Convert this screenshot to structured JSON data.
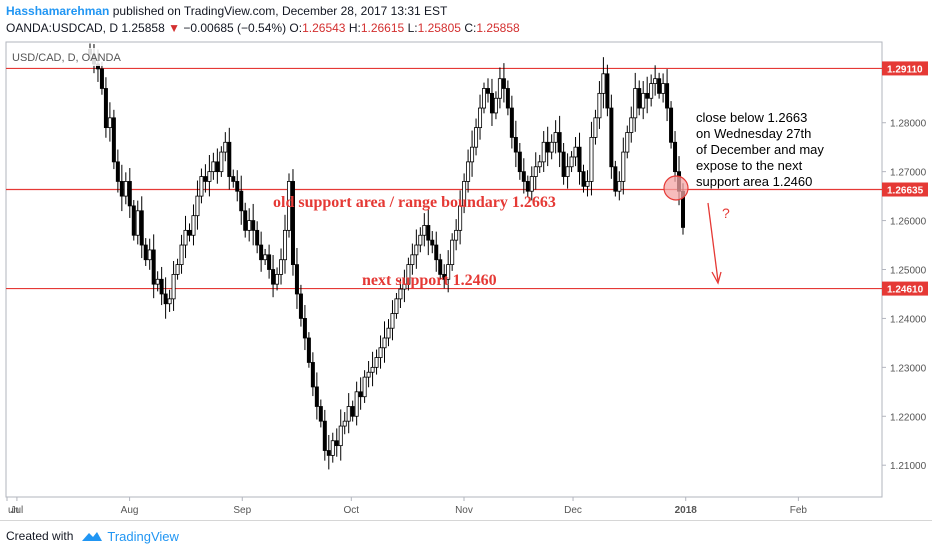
{
  "header": {
    "author": "Hasshamarehman",
    "published": " published on TradingView.com, December 28, 2017 13:31 EST",
    "symbol_line": "OANDA:USDCAD, D",
    "last": "1.25858",
    "change": "−0.00685 (−0.54%)",
    "open_label": "O:",
    "open": "1.26543",
    "high_label": "H:",
    "high": "1.26615",
    "low_label": "L:",
    "low": "1.25805",
    "close_label": "C:",
    "close": "1.25858"
  },
  "chart_title": "USD/CAD, D, OANDA",
  "footer": {
    "created_with": "Created with",
    "brand": "TradingView"
  },
  "colors": {
    "line": "#e53935",
    "label_bg": "#e53935",
    "candle": "#000000",
    "circle": "#f4a6a6"
  },
  "chart_data": {
    "type": "candlestick",
    "ylim": [
      1.2035,
      1.2965
    ],
    "y_ticks": [
      "1.21000",
      "1.22000",
      "1.23000",
      "1.24000",
      "1.25000",
      "1.26000",
      "1.27000",
      "1.28000"
    ],
    "x_ticks": [
      "Jun",
      "Jul",
      "Aug",
      "Sep",
      "Oct",
      "Nov",
      "Dec",
      "2018",
      "Feb"
    ],
    "x_range": [
      "2017-06-28",
      "2018-02-24"
    ],
    "horizontal_levels": [
      {
        "value": 1.2911,
        "label": "1.29110"
      },
      {
        "value": 1.26635,
        "label": "1.26635"
      },
      {
        "value": 1.2461,
        "label": "1.24610"
      }
    ],
    "annotations": {
      "range_boundary": "old support area / range boundary 1.2663",
      "next_support": "next support 1.2460",
      "note_lines": [
        "close below 1.2663",
        "on Wednesday 27th",
        "of December and may",
        "expose to the next",
        "support area 1.2460"
      ],
      "question": "?"
    },
    "closes": [
      1.294,
      1.292,
      1.291,
      1.287,
      1.279,
      1.281,
      1.272,
      1.268,
      1.265,
      1.268,
      1.263,
      1.257,
      1.262,
      1.255,
      1.252,
      1.254,
      1.247,
      1.248,
      1.245,
      1.243,
      1.244,
      1.249,
      1.251,
      1.255,
      1.258,
      1.257,
      1.261,
      1.265,
      1.269,
      1.268,
      1.27,
      1.272,
      1.27,
      1.274,
      1.276,
      1.269,
      1.268,
      1.266,
      1.262,
      1.258,
      1.26,
      1.258,
      1.255,
      1.252,
      1.253,
      1.25,
      1.247,
      1.249,
      1.252,
      1.258,
      1.268,
      1.251,
      1.245,
      1.24,
      1.236,
      1.231,
      1.226,
      1.222,
      1.219,
      1.213,
      1.212,
      1.215,
      1.214,
      1.218,
      1.219,
      1.222,
      1.22,
      1.225,
      1.224,
      1.228,
      1.229,
      1.23,
      1.232,
      1.234,
      1.236,
      1.238,
      1.241,
      1.244,
      1.246,
      1.247,
      1.251,
      1.253,
      1.255,
      1.257,
      1.259,
      1.256,
      1.255,
      1.252,
      1.249,
      1.248,
      1.251,
      1.256,
      1.258,
      1.263,
      1.268,
      1.272,
      1.275,
      1.279,
      1.283,
      1.287,
      1.286,
      1.282,
      1.285,
      1.289,
      1.287,
      1.283,
      1.277,
      1.274,
      1.27,
      1.268,
      1.266,
      1.269,
      1.271,
      1.272,
      1.276,
      1.274,
      1.276,
      1.278,
      1.274,
      1.269,
      1.271,
      1.273,
      1.275,
      1.27,
      1.267,
      1.268,
      1.277,
      1.281,
      1.286,
      1.29,
      1.283,
      1.271,
      1.266,
      1.268,
      1.274,
      1.278,
      1.281,
      1.287,
      1.283,
      1.286,
      1.285,
      1.288,
      1.289,
      1.286,
      1.288,
      1.283,
      1.276,
      1.27,
      1.266,
      1.2586
    ]
  }
}
